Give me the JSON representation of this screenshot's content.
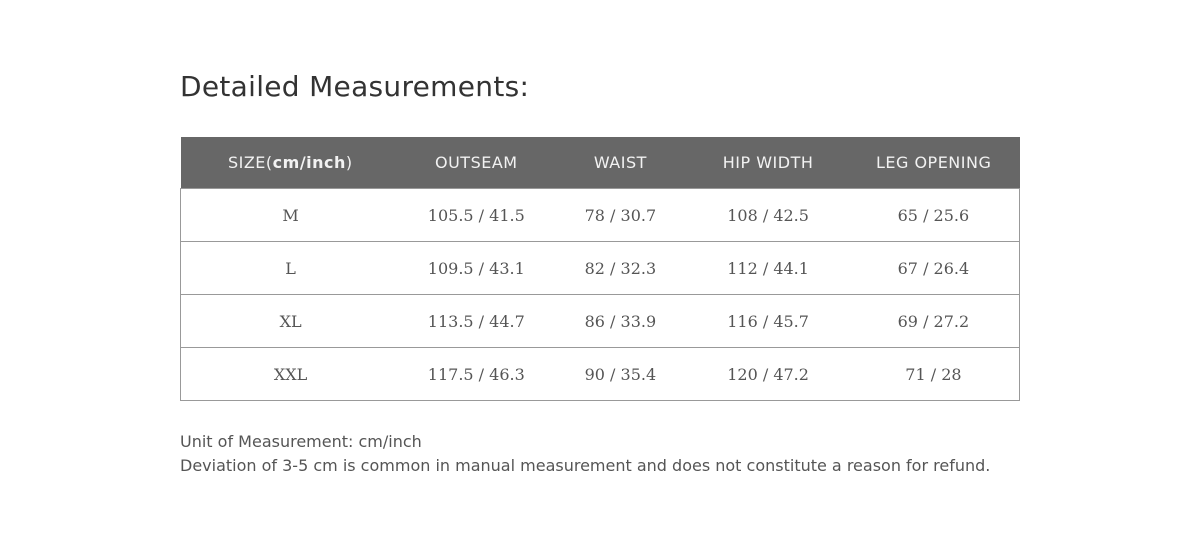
{
  "title": "Detailed Measurements:",
  "table": {
    "headers": {
      "size_prefix": "SIZE(",
      "size_unit": "cm/inch",
      "size_suffix": ")",
      "outseam": "OUTSEAM",
      "waist": "WAIST",
      "hip": "HIP WIDTH",
      "leg": "LEG OPENING"
    },
    "rows": [
      [
        "M",
        "105.5 / 41.5",
        "78 / 30.7",
        "108 / 42.5",
        "65 / 25.6"
      ],
      [
        "L",
        "109.5 / 43.1",
        "82 / 32.3",
        "112 / 44.1",
        "67 / 26.4"
      ],
      [
        "XL",
        "113.5 / 44.7",
        "86 / 33.9",
        "116 / 45.7",
        "69 / 27.2"
      ],
      [
        "XXL",
        "117.5 / 46.3",
        "90 / 35.4",
        "120 / 47.2",
        "71 / 28"
      ]
    ]
  },
  "notes": [
    "Unit of Measurement: cm/inch",
    "Deviation of 3-5 cm is common in manual measurement and does not constitute a reason for refund."
  ]
}
